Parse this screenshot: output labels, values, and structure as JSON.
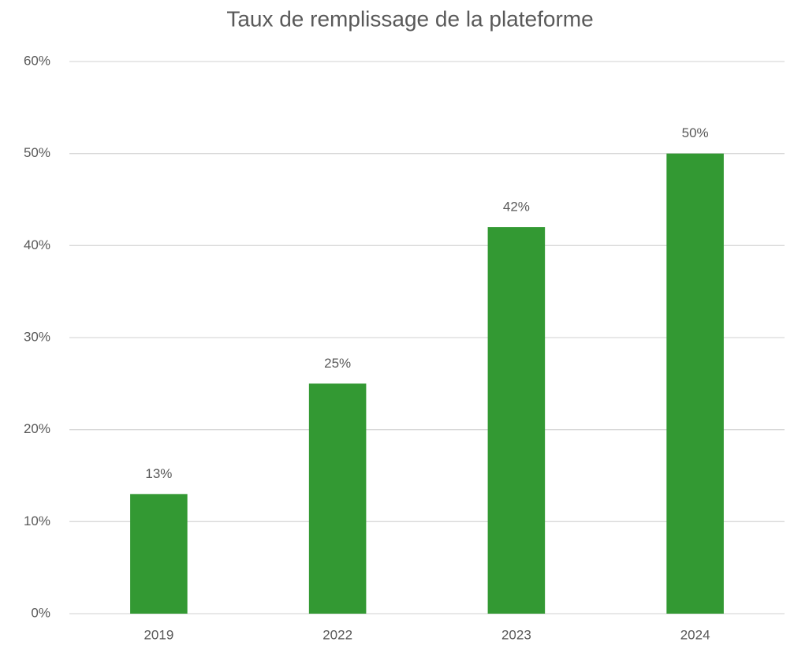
{
  "chart_data": {
    "type": "bar",
    "title": "Taux de remplissage de la plateforme",
    "categories": [
      "2019",
      "2022",
      "2023",
      "2024"
    ],
    "values": [
      13,
      25,
      42,
      50
    ],
    "value_labels": [
      "13%",
      "25%",
      "42%",
      "50%"
    ],
    "color": "#339933",
    "ylim": [
      0,
      60
    ],
    "yticks": [
      {
        "value": 0,
        "label": "0%"
      },
      {
        "value": 10,
        "label": "10%"
      },
      {
        "value": 20,
        "label": "20%"
      },
      {
        "value": 30,
        "label": "30%"
      },
      {
        "value": 40,
        "label": "40%"
      },
      {
        "value": 50,
        "label": "50%"
      },
      {
        "value": 60,
        "label": "60%"
      }
    ],
    "grid": true
  }
}
